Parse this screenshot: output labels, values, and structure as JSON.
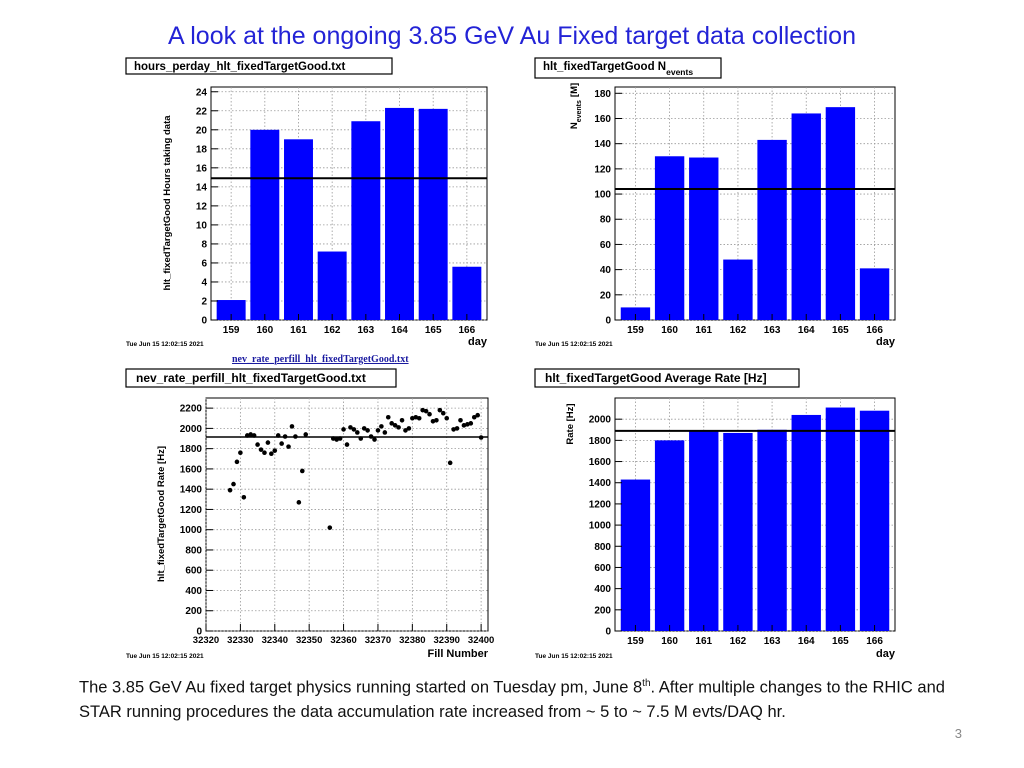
{
  "slide": {
    "title": "A look at the ongoing 3.85 GeV Au Fixed target data collection",
    "link_caption": "nev_rate_perfill_hlt_fixedTargetGood.txt",
    "caption_part1": "The 3.85 GeV Au fixed target physics running started on Tuesday pm, June 8",
    "caption_sup": "th",
    "caption_part2": ". After multiple changes to the RHIC and STAR running procedures the data accumulation rate increased from ~ 5 to ~ 7.5 M evts/DAQ hr.",
    "page_number": "3"
  },
  "chart_data": [
    {
      "type": "bar",
      "title": "hours_perday_hlt_fixedTargetGood.txt",
      "ylabel": "hlt_fixedTargetGood Hours taking data",
      "xlabel": "day",
      "categories": [
        "159",
        "160",
        "161",
        "162",
        "163",
        "164",
        "165",
        "166"
      ],
      "values": [
        2.1,
        20.0,
        19.0,
        7.2,
        20.9,
        22.3,
        22.2,
        5.6
      ],
      "ylim": [
        0,
        24.5
      ],
      "yticks": [
        0,
        2,
        4,
        6,
        8,
        10,
        12,
        14,
        16,
        18,
        20,
        22,
        24
      ],
      "reference_line": 14.9,
      "timestamp": "Tue Jun 15 12:02:15 2021",
      "grid": true,
      "color": "#0000ff"
    },
    {
      "type": "bar",
      "title_main": "hlt_fixedTargetGood N",
      "title_sub": "events",
      "ylabel_main": "N",
      "ylabel_sub": "events",
      "ylabel_unit": "[M]",
      "xlabel": "day",
      "categories": [
        "159",
        "160",
        "161",
        "162",
        "163",
        "164",
        "165",
        "166"
      ],
      "values": [
        10,
        130,
        129,
        48,
        143,
        164,
        169,
        41
      ],
      "ylim": [
        0,
        185
      ],
      "yticks": [
        0,
        20,
        40,
        60,
        80,
        100,
        120,
        140,
        160,
        180
      ],
      "reference_line": 104,
      "timestamp": "Tue Jun 15 12:02:15 2021",
      "grid": true,
      "color": "#0000ff"
    },
    {
      "type": "scatter",
      "title": "nev_rate_perfill_hlt_fixedTargetGood.txt",
      "ylabel": "hlt_fixedTargetGood Rate [Hz]",
      "xlabel": "Fill Number",
      "xlim": [
        32320,
        32402
      ],
      "xticks": [
        32320,
        32330,
        32340,
        32350,
        32360,
        32370,
        32380,
        32390,
        32400
      ],
      "ylim": [
        0,
        2300
      ],
      "yticks": [
        0,
        200,
        400,
        600,
        800,
        1000,
        1200,
        1400,
        1600,
        1800,
        2000,
        2200
      ],
      "reference_line": 1915,
      "timestamp": "Tue Jun 15 12:02:15 2021",
      "grid": true,
      "points": [
        [
          32327,
          1390
        ],
        [
          32328,
          1450
        ],
        [
          32329,
          1670
        ],
        [
          32330,
          1760
        ],
        [
          32331,
          1320
        ],
        [
          32332,
          1930
        ],
        [
          32333,
          1940
        ],
        [
          32334,
          1930
        ],
        [
          32335,
          1840
        ],
        [
          32336,
          1790
        ],
        [
          32337,
          1760
        ],
        [
          32338,
          1860
        ],
        [
          32339,
          1750
        ],
        [
          32340,
          1780
        ],
        [
          32341,
          1930
        ],
        [
          32342,
          1850
        ],
        [
          32343,
          1920
        ],
        [
          32344,
          1820
        ],
        [
          32345,
          2020
        ],
        [
          32346,
          1920
        ],
        [
          32347,
          1270
        ],
        [
          32348,
          1580
        ],
        [
          32349,
          1940
        ],
        [
          32356,
          1020
        ],
        [
          32357,
          1900
        ],
        [
          32358,
          1890
        ],
        [
          32359,
          1900
        ],
        [
          32360,
          1990
        ],
        [
          32361,
          1840
        ],
        [
          32362,
          2010
        ],
        [
          32363,
          1990
        ],
        [
          32364,
          1960
        ],
        [
          32365,
          1900
        ],
        [
          32366,
          2000
        ],
        [
          32367,
          1980
        ],
        [
          32368,
          1920
        ],
        [
          32369,
          1890
        ],
        [
          32370,
          1980
        ],
        [
          32371,
          2020
        ],
        [
          32372,
          1960
        ],
        [
          32373,
          2110
        ],
        [
          32374,
          2050
        ],
        [
          32375,
          2030
        ],
        [
          32376,
          2010
        ],
        [
          32377,
          2080
        ],
        [
          32378,
          1980
        ],
        [
          32379,
          2000
        ],
        [
          32380,
          2100
        ],
        [
          32381,
          2110
        ],
        [
          32382,
          2100
        ],
        [
          32383,
          2180
        ],
        [
          32384,
          2170
        ],
        [
          32385,
          2140
        ],
        [
          32386,
          2070
        ],
        [
          32387,
          2080
        ],
        [
          32388,
          2180
        ],
        [
          32389,
          2150
        ],
        [
          32390,
          2100
        ],
        [
          32391,
          1660
        ],
        [
          32392,
          1990
        ],
        [
          32393,
          2000
        ],
        [
          32394,
          2080
        ],
        [
          32395,
          2030
        ],
        [
          32396,
          2040
        ],
        [
          32397,
          2050
        ],
        [
          32398,
          2110
        ],
        [
          32399,
          2130
        ],
        [
          32400,
          1910
        ]
      ]
    },
    {
      "type": "bar",
      "title": "hlt_fixedTargetGood Average Rate [Hz]",
      "ylabel": "Rate [Hz]",
      "xlabel": "day",
      "categories": [
        "159",
        "160",
        "161",
        "162",
        "163",
        "164",
        "165",
        "166"
      ],
      "values": [
        1430,
        1800,
        1890,
        1870,
        1900,
        2040,
        2110,
        2080
      ],
      "ylim": [
        0,
        2200
      ],
      "yticks": [
        0,
        200,
        400,
        600,
        800,
        1000,
        1200,
        1400,
        1600,
        1800,
        2000
      ],
      "reference_line": 1890,
      "timestamp": "Tue Jun 15 12:02:15 2021",
      "grid": true,
      "color": "#0000ff"
    }
  ]
}
